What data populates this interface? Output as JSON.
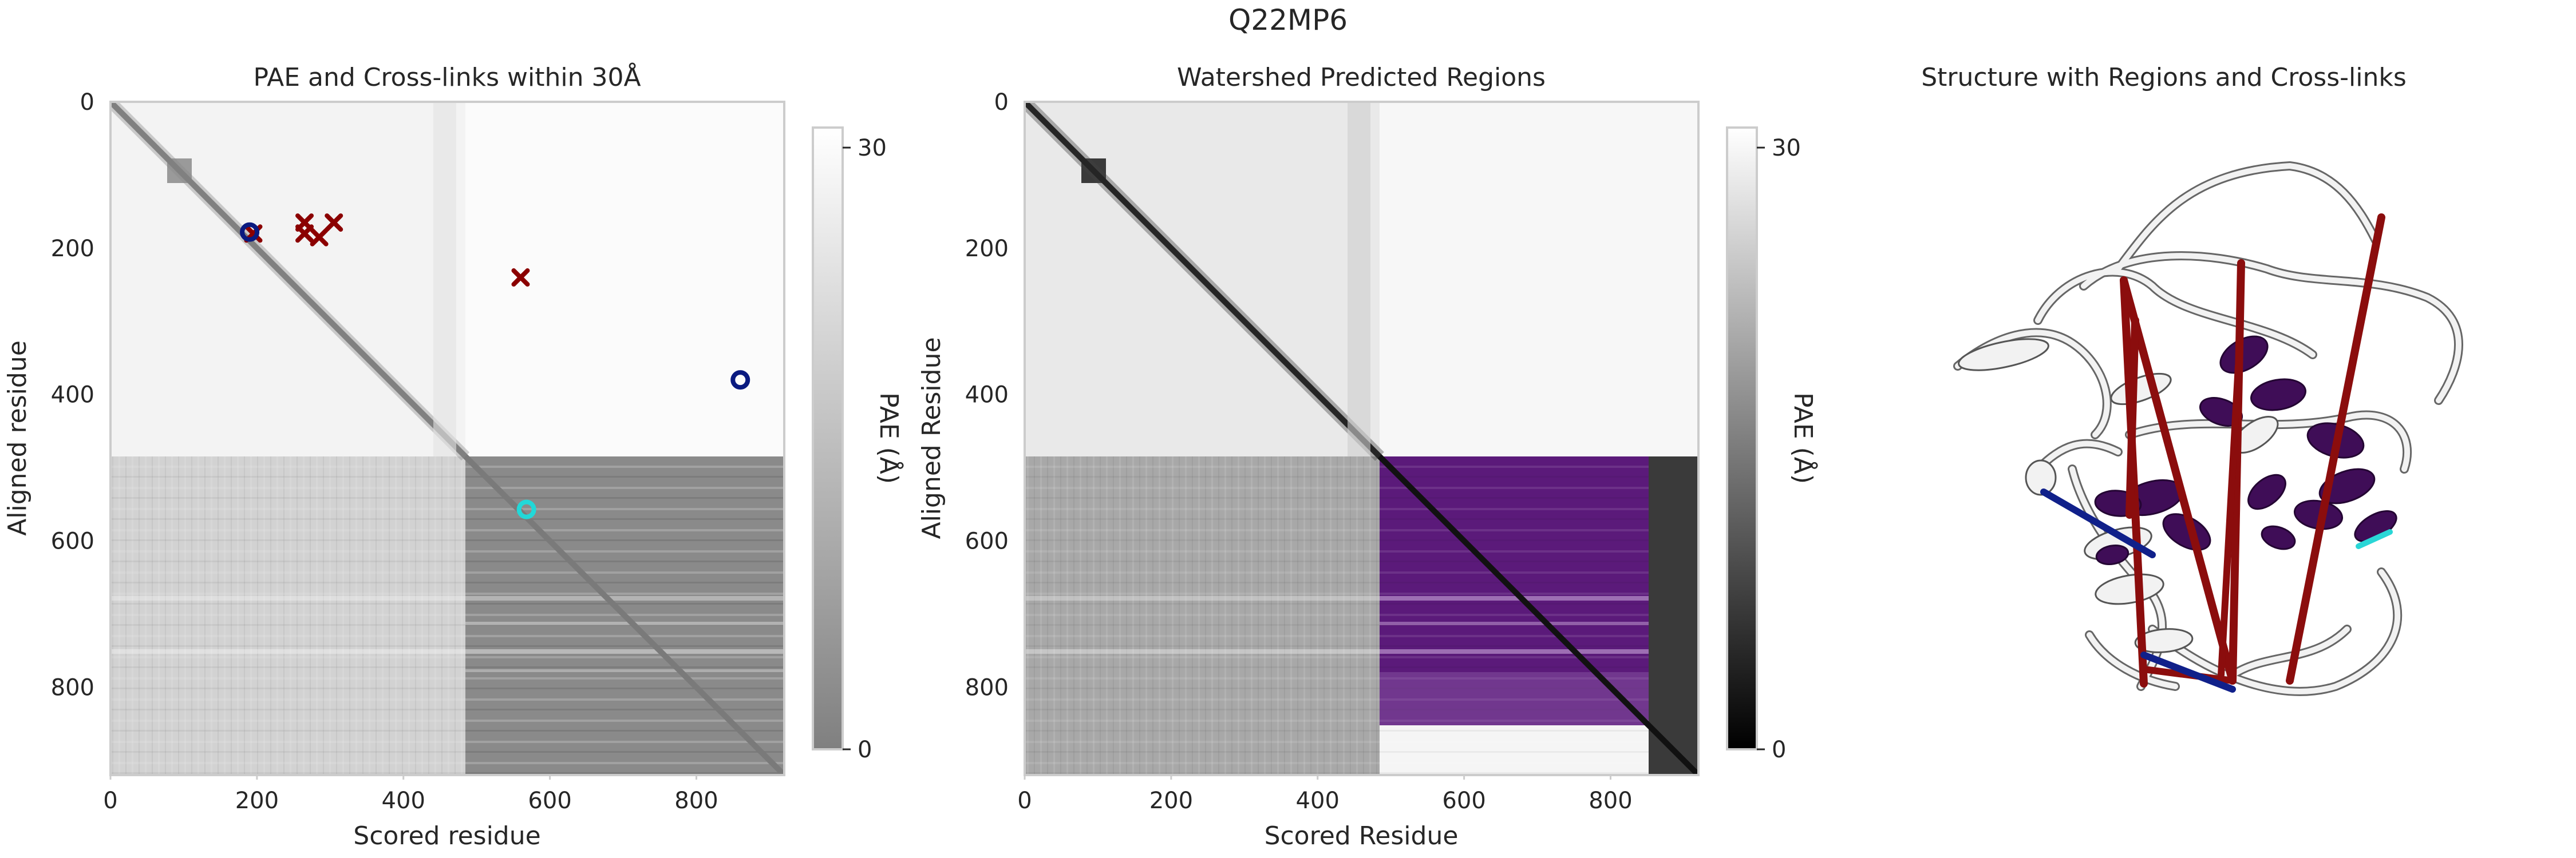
{
  "figure": {
    "title": "Q22MP6"
  },
  "chart_data": [
    {
      "type": "heatmap",
      "title": "PAE and Cross-links within 30Å",
      "xlabel": "Scored residue",
      "ylabel": "Aligned residue",
      "xlim": [
        0,
        920
      ],
      "ylim": [
        920,
        0
      ],
      "xticks": [
        0,
        200,
        400,
        600,
        800
      ],
      "yticks": [
        0,
        200,
        400,
        600,
        800
      ],
      "colormap": "gray_r_transparent",
      "colorbar": {
        "label": "PAE (Å)",
        "range": [
          0,
          31
        ],
        "ticks": [
          0,
          30
        ]
      },
      "domain_split_residue": 485,
      "crosslinks_red": [
        [
          195,
          180
        ],
        [
          265,
          165
        ],
        [
          265,
          180
        ],
        [
          285,
          185
        ],
        [
          305,
          165
        ],
        [
          560,
          240
        ]
      ],
      "crosslinks_navy": [
        [
          190,
          178
        ],
        [
          860,
          380
        ]
      ],
      "crosslinks_cyan": [
        [
          568,
          557
        ]
      ],
      "colors": {
        "red": "#8b0000",
        "navy": "#0a1a80",
        "cyan": "#22d8d8"
      }
    },
    {
      "type": "heatmap",
      "title": "Watershed Predicted Regions",
      "xlabel": "Scored Residue",
      "ylabel": "Aligned Residue",
      "xlim": [
        0,
        920
      ],
      "ylim": [
        920,
        0
      ],
      "xticks": [
        0,
        200,
        400,
        600,
        800
      ],
      "yticks": [
        0,
        200,
        400,
        600,
        800
      ],
      "colormap": "gray",
      "colorbar": {
        "label": "PAE (Å)",
        "range": [
          0,
          31
        ],
        "ticks": [
          0,
          30
        ]
      },
      "regions": [
        {
          "start": 485,
          "end": 855,
          "color": "#6a1b8a"
        }
      ]
    }
  ],
  "structure_panel": {
    "title": "Structure with Regions and Cross-links",
    "colors": {
      "region": "#3f0d57",
      "chain": "#f2f2f2",
      "outline": "#555555",
      "crosslink_red": "#8b0d0d",
      "crosslink_navy": "#10208a",
      "crosslink_cyan": "#2ad6d6"
    }
  }
}
